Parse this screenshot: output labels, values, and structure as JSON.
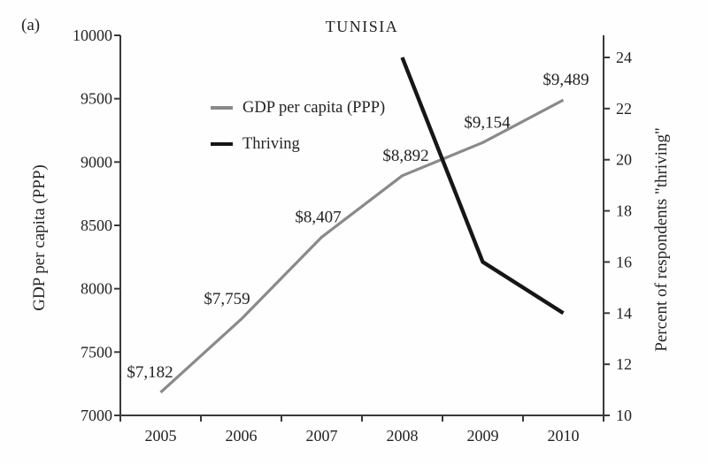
{
  "figure_label": "(a)",
  "chart_data": {
    "type": "line",
    "title": "TUNISIA",
    "categories": [
      "2005",
      "2006",
      "2007",
      "2008",
      "2009",
      "2010"
    ],
    "series": [
      {
        "name": "GDP per capita (PPP)",
        "axis": "left",
        "color": "#8a8a8a",
        "values": [
          7182,
          7759,
          8407,
          8892,
          9154,
          9489
        ],
        "point_labels": [
          "$7,182",
          "$7,759",
          "$8,407",
          "$8,892",
          "$9,154",
          "$9,489"
        ]
      },
      {
        "name": "Thriving",
        "axis": "right",
        "color": "#161616",
        "values": [
          null,
          null,
          null,
          24,
          16,
          14
        ],
        "point_labels": []
      }
    ],
    "left_axis": {
      "label": "GDP per capita (PPP)",
      "range": [
        7000,
        10000
      ],
      "ticks": [
        7000,
        7500,
        8000,
        8500,
        9000,
        9500,
        10000
      ]
    },
    "right_axis": {
      "label": "Percent of respondents \"thriving\"",
      "range": [
        10,
        24
      ],
      "ticks": [
        10,
        12,
        14,
        16,
        18,
        20,
        22,
        24
      ]
    },
    "x_axis_label": "",
    "grid": false,
    "legend_position": "top-left-inside",
    "axis_color": "#3a3a3a"
  }
}
